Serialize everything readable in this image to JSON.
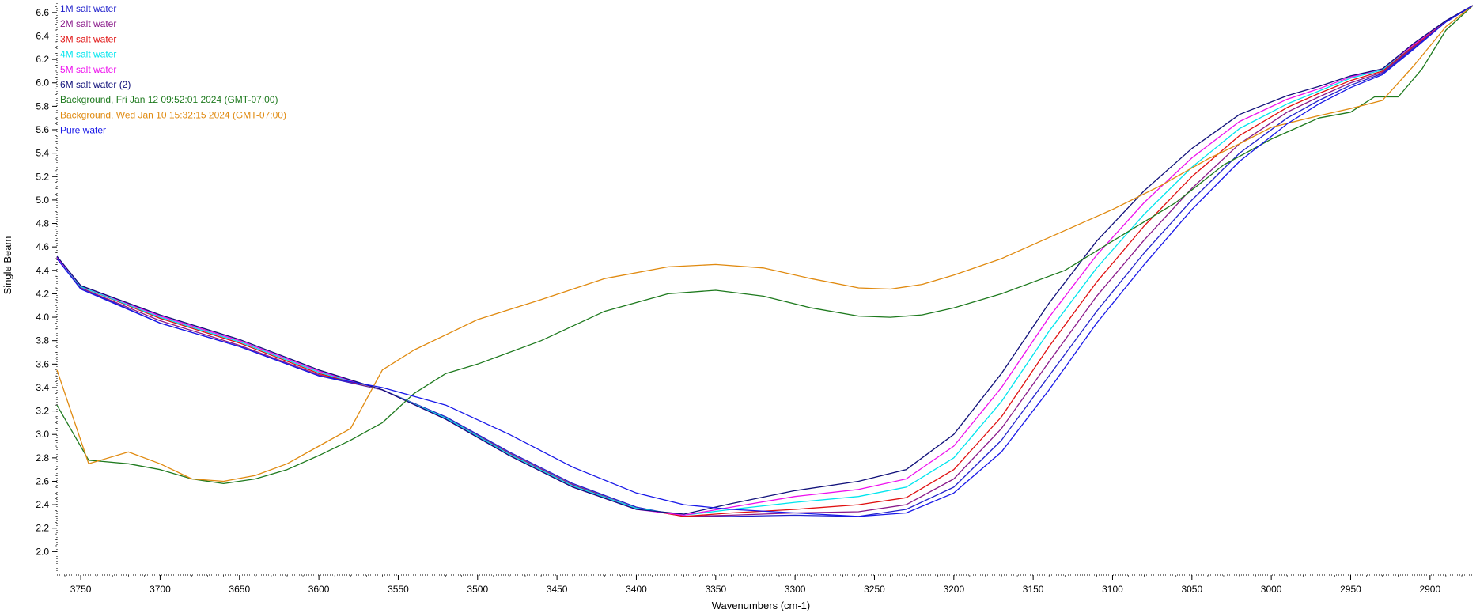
{
  "chart_data": {
    "type": "line",
    "xlabel": "Wavenumbers (cm-1)",
    "ylabel": "Single Beam",
    "xlim": [
      3765,
      2873
    ],
    "ylim": [
      1.8,
      6.68
    ],
    "x_reversed": true,
    "x_ticks": [
      "3750",
      "3700",
      "3650",
      "3600",
      "3550",
      "3500",
      "3450",
      "3400",
      "3350",
      "3300",
      "3250",
      "3200",
      "3150",
      "3100",
      "3050",
      "3000",
      "2950",
      "2900"
    ],
    "y_ticks": [
      "2.0",
      "2.2",
      "2.4",
      "2.6",
      "2.8",
      "3.0",
      "3.2",
      "3.4",
      "3.6",
      "3.8",
      "4.0",
      "4.2",
      "4.4",
      "4.6",
      "4.8",
      "5.0",
      "5.2",
      "5.4",
      "5.6",
      "5.8",
      "6.0",
      "6.2",
      "6.4",
      "6.6"
    ],
    "legend_position": "top-left",
    "series": [
      {
        "name": "1M salt water",
        "color": "#2222cc",
        "x": [
          3765,
          3750,
          3700,
          3650,
          3600,
          3560,
          3520,
          3480,
          3440,
          3400,
          3370,
          3340,
          3300,
          3260,
          3230,
          3200,
          3170,
          3140,
          3110,
          3080,
          3050,
          3020,
          2990,
          2970,
          2950,
          2930,
          2910,
          2890,
          2873
        ],
        "y": [
          4.5,
          4.25,
          3.95,
          3.75,
          3.5,
          3.38,
          3.15,
          2.85,
          2.58,
          2.38,
          2.3,
          2.3,
          2.31,
          2.3,
          2.36,
          2.55,
          2.95,
          3.5,
          4.05,
          4.55,
          5.0,
          5.4,
          5.7,
          5.85,
          5.98,
          6.08,
          6.3,
          6.52,
          6.66
        ]
      },
      {
        "name": "2M salt water",
        "color": "#8a1a8a",
        "x": [
          3765,
          3750,
          3700,
          3650,
          3600,
          3560,
          3520,
          3480,
          3440,
          3400,
          3370,
          3340,
          3300,
          3260,
          3230,
          3200,
          3170,
          3140,
          3110,
          3080,
          3050,
          3020,
          2990,
          2970,
          2950,
          2930,
          2910,
          2890,
          2873
        ],
        "y": [
          4.5,
          4.25,
          3.97,
          3.76,
          3.51,
          3.38,
          3.14,
          2.84,
          2.57,
          2.37,
          2.3,
          2.31,
          2.33,
          2.34,
          2.4,
          2.62,
          3.05,
          3.62,
          4.18,
          4.66,
          5.1,
          5.48,
          5.75,
          5.88,
          6.0,
          6.09,
          6.31,
          6.52,
          6.66
        ]
      },
      {
        "name": "3M salt water",
        "color": "#e01010",
        "x": [
          3765,
          3750,
          3700,
          3650,
          3600,
          3560,
          3520,
          3480,
          3440,
          3400,
          3370,
          3340,
          3300,
          3260,
          3230,
          3200,
          3170,
          3140,
          3110,
          3080,
          3050,
          3020,
          2990,
          2970,
          2950,
          2930,
          2910,
          2890,
          2873
        ],
        "y": [
          4.51,
          4.26,
          3.99,
          3.78,
          3.52,
          3.38,
          3.14,
          2.83,
          2.56,
          2.37,
          2.3,
          2.33,
          2.36,
          2.4,
          2.46,
          2.7,
          3.15,
          3.75,
          4.3,
          4.78,
          5.2,
          5.55,
          5.79,
          5.91,
          6.02,
          6.1,
          6.32,
          6.53,
          6.66
        ]
      },
      {
        "name": "4M salt water",
        "color": "#00e5ee",
        "x": [
          3765,
          3750,
          3700,
          3650,
          3600,
          3560,
          3520,
          3480,
          3440,
          3400,
          3370,
          3340,
          3300,
          3260,
          3230,
          3200,
          3170,
          3140,
          3110,
          3080,
          3050,
          3020,
          2990,
          2970,
          2950,
          2930,
          2910,
          2890,
          2873
        ],
        "y": [
          4.51,
          4.26,
          4.0,
          3.79,
          3.53,
          3.38,
          3.14,
          2.83,
          2.56,
          2.37,
          2.31,
          2.36,
          2.42,
          2.47,
          2.55,
          2.8,
          3.28,
          3.88,
          4.42,
          4.88,
          5.28,
          5.61,
          5.82,
          5.93,
          6.04,
          6.11,
          6.33,
          6.53,
          6.66
        ]
      },
      {
        "name": "5M salt water",
        "color": "#ee10ee",
        "x": [
          3765,
          3750,
          3700,
          3650,
          3600,
          3560,
          3520,
          3480,
          3440,
          3400,
          3370,
          3340,
          3300,
          3260,
          3230,
          3200,
          3170,
          3140,
          3110,
          3080,
          3050,
          3020,
          2990,
          2970,
          2950,
          2930,
          2910,
          2890,
          2873
        ],
        "y": [
          4.51,
          4.27,
          4.01,
          3.8,
          3.54,
          3.38,
          3.13,
          2.82,
          2.55,
          2.36,
          2.31,
          2.38,
          2.47,
          2.53,
          2.62,
          2.9,
          3.4,
          4.0,
          4.53,
          4.98,
          5.36,
          5.67,
          5.86,
          5.95,
          6.05,
          6.12,
          6.33,
          6.53,
          6.66
        ]
      },
      {
        "name": "6M salt water (2)",
        "color": "#10107a",
        "x": [
          3765,
          3750,
          3700,
          3650,
          3600,
          3560,
          3520,
          3480,
          3440,
          3400,
          3370,
          3340,
          3300,
          3260,
          3230,
          3200,
          3170,
          3140,
          3110,
          3080,
          3050,
          3020,
          2990,
          2970,
          2950,
          2930,
          2910,
          2890,
          2873
        ],
        "y": [
          4.52,
          4.27,
          4.02,
          3.81,
          3.55,
          3.38,
          3.13,
          2.82,
          2.55,
          2.36,
          2.32,
          2.41,
          2.52,
          2.6,
          2.7,
          3.0,
          3.52,
          4.12,
          4.65,
          5.08,
          5.44,
          5.73,
          5.89,
          5.97,
          6.06,
          6.12,
          6.34,
          6.53,
          6.66
        ]
      },
      {
        "name": "Background, Fri Jan 12 09:52:01 2024 (GMT-07:00)",
        "color": "#1e7a1e",
        "x": [
          3765,
          3745,
          3720,
          3700,
          3680,
          3660,
          3640,
          3620,
          3600,
          3580,
          3560,
          3540,
          3520,
          3500,
          3460,
          3420,
          3380,
          3350,
          3320,
          3290,
          3260,
          3240,
          3220,
          3200,
          3170,
          3130,
          3100,
          3060,
          3030,
          3000,
          2970,
          2950,
          2935,
          2920,
          2905,
          2890,
          2873
        ],
        "y": [
          3.25,
          2.78,
          2.75,
          2.7,
          2.62,
          2.58,
          2.62,
          2.7,
          2.82,
          2.95,
          3.1,
          3.35,
          3.52,
          3.6,
          3.8,
          4.05,
          4.2,
          4.23,
          4.18,
          4.08,
          4.01,
          4.0,
          4.02,
          4.08,
          4.2,
          4.4,
          4.65,
          4.98,
          5.3,
          5.52,
          5.7,
          5.75,
          5.88,
          5.88,
          6.12,
          6.45,
          6.66
        ]
      },
      {
        "name": "Background, Wed Jan 10 15:32:15 2024 (GMT-07:00)",
        "color": "#e08a10",
        "x": [
          3765,
          3745,
          3720,
          3700,
          3680,
          3660,
          3640,
          3620,
          3600,
          3580,
          3570,
          3560,
          3540,
          3520,
          3500,
          3460,
          3420,
          3380,
          3350,
          3320,
          3290,
          3260,
          3240,
          3220,
          3200,
          3170,
          3140,
          3100,
          3070,
          3040,
          3020,
          3000,
          2970,
          2950,
          2930,
          2910,
          2890,
          2873
        ],
        "y": [
          3.55,
          2.75,
          2.85,
          2.75,
          2.62,
          2.6,
          2.65,
          2.75,
          2.9,
          3.05,
          3.3,
          3.55,
          3.72,
          3.85,
          3.98,
          4.15,
          4.33,
          4.43,
          4.45,
          4.42,
          4.33,
          4.25,
          4.24,
          4.28,
          4.36,
          4.5,
          4.68,
          4.92,
          5.12,
          5.35,
          5.48,
          5.62,
          5.72,
          5.78,
          5.85,
          6.15,
          6.48,
          6.66
        ]
      },
      {
        "name": "Pure water",
        "color": "#1818e8",
        "x": [
          3765,
          3750,
          3700,
          3650,
          3600,
          3560,
          3520,
          3480,
          3440,
          3400,
          3370,
          3340,
          3300,
          3260,
          3230,
          3200,
          3170,
          3140,
          3110,
          3080,
          3050,
          3020,
          2990,
          2970,
          2950,
          2930,
          2910,
          2890,
          2873
        ],
        "y": [
          4.5,
          4.24,
          3.95,
          3.75,
          3.5,
          3.4,
          3.25,
          3.0,
          2.72,
          2.5,
          2.4,
          2.36,
          2.33,
          2.3,
          2.33,
          2.5,
          2.85,
          3.38,
          3.95,
          4.45,
          4.92,
          5.33,
          5.65,
          5.82,
          5.96,
          6.07,
          6.29,
          6.52,
          6.66
        ]
      }
    ]
  }
}
